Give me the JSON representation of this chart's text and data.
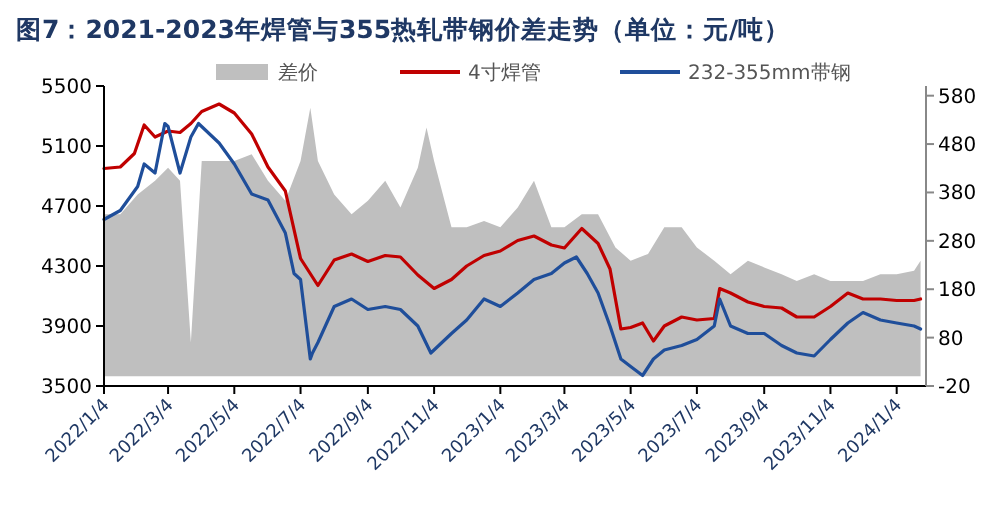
{
  "chart_data": {
    "type": "line",
    "title": "图7：2021-2023年焊管与355热轧带钢价差走势（单位：元/吨）",
    "legend": "top",
    "xlim": [
      "2022-01-04",
      "2024-01-31"
    ],
    "xticks": [
      {
        "value": "2022-01-04",
        "label": "2022/1/4"
      },
      {
        "value": "2022-03-04",
        "label": "2022/3/4"
      },
      {
        "value": "2022-05-04",
        "label": "2022/5/4"
      },
      {
        "value": "2022-07-04",
        "label": "2022/7/4"
      },
      {
        "value": "2022-09-04",
        "label": "2022/9/4"
      },
      {
        "value": "2022-11-04",
        "label": "2022/11/4"
      },
      {
        "value": "2023-01-04",
        "label": "2023/1/4"
      },
      {
        "value": "2023-03-04",
        "label": "2023/3/4"
      },
      {
        "value": "2023-05-04",
        "label": "2023/5/4"
      },
      {
        "value": "2023-07-04",
        "label": "2023/7/4"
      },
      {
        "value": "2023-09-04",
        "label": "2023/9/4"
      },
      {
        "value": "2023-11-04",
        "label": "2023/11/4"
      },
      {
        "value": "2024-01-04",
        "label": "2024/1/4"
      }
    ],
    "ylim": [
      3500,
      5500
    ],
    "yticks": [
      3500,
      3900,
      4300,
      4700,
      5100,
      5500
    ],
    "y2lim": [
      -20,
      600
    ],
    "y2ticks": [
      -20,
      80,
      180,
      280,
      380,
      480,
      580
    ],
    "series": [
      {
        "name": "差价",
        "type": "area",
        "axis": "y2",
        "color": "#bfbfbf",
        "x": [
          "2022-01-04",
          "2022-01-19",
          "2022-02-04",
          "2022-02-20",
          "2022-03-04",
          "2022-03-15",
          "2022-03-25",
          "2022-04-04",
          "2022-04-20",
          "2022-05-04",
          "2022-05-20",
          "2022-06-04",
          "2022-06-20",
          "2022-07-04",
          "2022-07-13",
          "2022-07-20",
          "2022-08-04",
          "2022-08-20",
          "2022-09-04",
          "2022-09-20",
          "2022-10-04",
          "2022-10-20",
          "2022-10-28",
          "2022-11-04",
          "2022-11-20",
          "2022-12-04",
          "2022-12-20",
          "2023-01-04",
          "2023-01-20",
          "2023-02-04",
          "2023-02-20",
          "2023-03-04",
          "2023-03-20",
          "2023-04-04",
          "2023-04-20",
          "2023-05-04",
          "2023-05-20",
          "2023-06-04",
          "2023-06-20",
          "2023-07-04",
          "2023-07-20",
          "2023-08-04",
          "2023-08-20",
          "2023-09-04",
          "2023-09-20",
          "2023-10-04",
          "2023-10-20",
          "2023-11-04",
          "2023-11-20",
          "2023-12-04",
          "2023-12-20",
          "2024-01-04",
          "2024-01-20",
          "2024-01-26"
        ],
        "values": [
          335,
          335,
          376,
          404,
          431,
          404,
          70,
          445,
          445,
          445,
          459,
          404,
          363,
          445,
          555,
          445,
          376,
          335,
          363,
          404,
          349,
          431,
          514,
          445,
          308,
          308,
          321,
          308,
          349,
          404,
          308,
          308,
          335,
          335,
          266,
          239,
          253,
          308,
          308,
          266,
          239,
          211,
          239,
          225,
          211,
          197,
          211,
          197,
          197,
          197,
          211,
          211,
          218,
          239
        ]
      },
      {
        "name": "4寸焊管",
        "type": "line",
        "color": "#c00000",
        "x": [
          "2022-01-04",
          "2022-01-19",
          "2022-02-01",
          "2022-02-10",
          "2022-02-20",
          "2022-03-04",
          "2022-03-15",
          "2022-03-25",
          "2022-04-04",
          "2022-04-20",
          "2022-05-04",
          "2022-05-20",
          "2022-06-04",
          "2022-06-20",
          "2022-07-04",
          "2022-07-20",
          "2022-08-04",
          "2022-08-20",
          "2022-09-04",
          "2022-09-20",
          "2022-10-04",
          "2022-10-20",
          "2022-11-04",
          "2022-11-20",
          "2022-12-04",
          "2022-12-20",
          "2023-01-04",
          "2023-01-20",
          "2023-02-04",
          "2023-02-20",
          "2023-03-04",
          "2023-03-20",
          "2023-04-04",
          "2023-04-15",
          "2023-04-25",
          "2023-05-04",
          "2023-05-15",
          "2023-05-25",
          "2023-06-04",
          "2023-06-20",
          "2023-07-04",
          "2023-07-20",
          "2023-07-25",
          "2023-08-04",
          "2023-08-20",
          "2023-09-04",
          "2023-09-20",
          "2023-10-04",
          "2023-10-20",
          "2023-11-04",
          "2023-11-20",
          "2023-12-04",
          "2023-12-20",
          "2024-01-04",
          "2024-01-20",
          "2024-01-26"
        ],
        "values": [
          4950,
          4960,
          5050,
          5240,
          5160,
          5200,
          5190,
          5250,
          5330,
          5380,
          5320,
          5180,
          4960,
          4800,
          4350,
          4170,
          4340,
          4380,
          4330,
          4370,
          4360,
          4240,
          4150,
          4210,
          4300,
          4370,
          4400,
          4470,
          4500,
          4440,
          4420,
          4550,
          4450,
          4280,
          3880,
          3890,
          3920,
          3800,
          3900,
          3960,
          3940,
          3950,
          4150,
          4120,
          4060,
          4030,
          4020,
          3960,
          3960,
          4030,
          4120,
          4080,
          4080,
          4070,
          4070,
          4080
        ]
      },
      {
        "name": "232-355mm带钢",
        "type": "line",
        "color": "#1f4e9a",
        "x": [
          "2022-01-04",
          "2022-01-19",
          "2022-02-04",
          "2022-02-10",
          "2022-02-20",
          "2022-03-01",
          "2022-03-04",
          "2022-03-15",
          "2022-03-25",
          "2022-04-01",
          "2022-04-20",
          "2022-05-04",
          "2022-05-20",
          "2022-06-04",
          "2022-06-20",
          "2022-06-28",
          "2022-07-04",
          "2022-07-13",
          "2022-07-15",
          "2022-07-20",
          "2022-08-04",
          "2022-08-20",
          "2022-09-04",
          "2022-09-20",
          "2022-10-04",
          "2022-10-20",
          "2022-11-01",
          "2022-11-20",
          "2022-12-04",
          "2022-12-20",
          "2023-01-04",
          "2023-01-20",
          "2023-02-04",
          "2023-02-20",
          "2023-03-04",
          "2023-03-15",
          "2023-03-25",
          "2023-04-04",
          "2023-04-15",
          "2023-04-25",
          "2023-05-04",
          "2023-05-15",
          "2023-05-25",
          "2023-06-04",
          "2023-06-20",
          "2023-07-04",
          "2023-07-20",
          "2023-07-25",
          "2023-08-04",
          "2023-08-20",
          "2023-09-04",
          "2023-09-20",
          "2023-10-04",
          "2023-10-20",
          "2023-11-04",
          "2023-11-20",
          "2023-12-04",
          "2023-12-20",
          "2024-01-04",
          "2024-01-20",
          "2024-01-26"
        ],
        "values": [
          4610,
          4670,
          4830,
          4980,
          4920,
          5250,
          5230,
          4920,
          5160,
          5250,
          5120,
          4980,
          4780,
          4740,
          4520,
          4250,
          4210,
          3680,
          3720,
          3790,
          4030,
          4080,
          4010,
          4030,
          4010,
          3900,
          3720,
          3850,
          3940,
          4080,
          4030,
          4120,
          4210,
          4250,
          4320,
          4360,
          4250,
          4120,
          3900,
          3680,
          3630,
          3570,
          3680,
          3740,
          3770,
          3810,
          3900,
          4080,
          3900,
          3850,
          3850,
          3770,
          3720,
          3700,
          3810,
          3920,
          3990,
          3940,
          3920,
          3900,
          3880
        ]
      }
    ]
  }
}
